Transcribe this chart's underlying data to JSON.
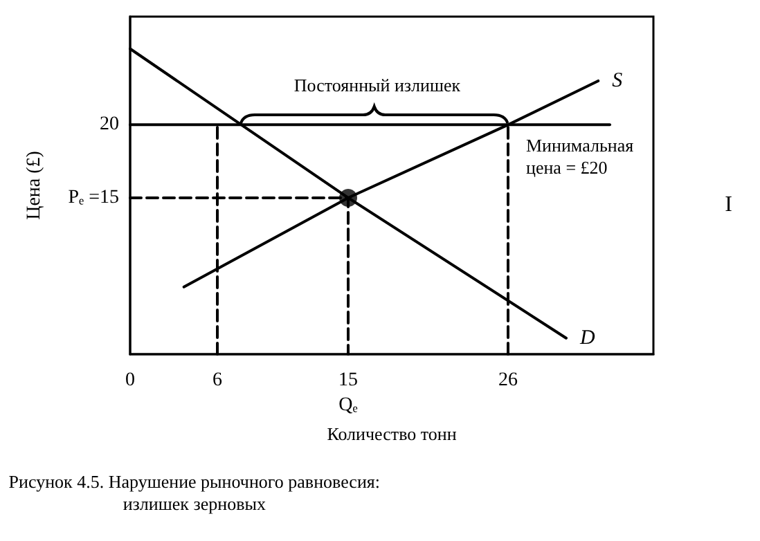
{
  "chart_data": {
    "type": "line",
    "title": "Рисунок 4.5. Нарушение рыночного равновесия:\nизлишек зерновых",
    "xlabel": "Количество тонн",
    "ylabel": "Цена (£)",
    "xlim": [
      0,
      36
    ],
    "xticks": [
      0,
      6,
      {
        "value": 15,
        "label": "15\nQₑ"
      },
      26
    ],
    "ylim": [
      4.3,
      27.4
    ],
    "yticks": [
      {
        "value": 15,
        "label": "Pₑ =15"
      },
      20
    ],
    "grid": false,
    "legend": false,
    "marker": "none",
    "line_style": "solid",
    "series": [
      {
        "name": "D",
        "color": "#000000",
        "x": [
          0,
          15,
          30
        ],
        "values": [
          25.2,
          15,
          5.4
        ]
      },
      {
        "name": "S",
        "color": "#000000",
        "x": [
          3.7,
          15,
          26,
          32.2
        ],
        "values": [
          8.9,
          15,
          20,
          23
        ]
      },
      {
        "color": "#000000",
        "x": [
          0,
          33
        ],
        "values": [
          20,
          20
        ]
      },
      {
        "color": "#000000",
        "x": [
          6,
          6
        ],
        "values": [
          4.3,
          20
        ],
        "line_style": "dashed"
      },
      {
        "color": "#000000",
        "x": [
          0,
          15,
          15
        ],
        "values": [
          15,
          15,
          4.3
        ],
        "line_style": "dashed"
      },
      {
        "color": "#000000",
        "x": [
          26,
          26
        ],
        "values": [
          4.3,
          20
        ],
        "line_style": "dashed"
      },
      {
        "type": "scatter",
        "color": "#000000",
        "x": [
          15
        ],
        "values": [
          15
        ],
        "marker": "circle"
      }
    ],
    "annotations": [
      {
        "text": "Постоянный излишек",
        "x": 17,
        "y": 20
      },
      "Минимальная\nцена = £20",
      "I"
    ]
  }
}
